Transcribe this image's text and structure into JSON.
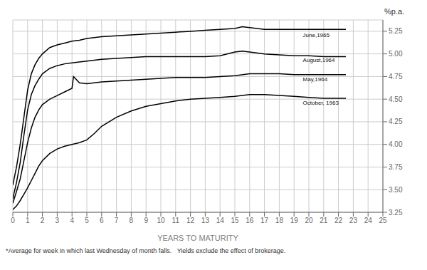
{
  "chart_data": {
    "type": "line",
    "xlabel": "YEARS TO MATURITY",
    "ylabel": "%p.a.",
    "footnote": "*Average for week in which last Wednesday of month falls.   Yields exclude the effect of brokerage.",
    "color": "#000000",
    "grid": true,
    "xlim": [
      0,
      25
    ],
    "ylim": [
      3.25,
      5.375
    ],
    "xticks": [
      0,
      1,
      2,
      3,
      4,
      5,
      6,
      7,
      8,
      9,
      10,
      11,
      12,
      13,
      14,
      15,
      16,
      17,
      18,
      19,
      20,
      21,
      22,
      23,
      24,
      25
    ],
    "yticks": [
      3.25,
      {
        "value": 3.5,
        "label": "3.50"
      },
      3.75,
      {
        "value": 4,
        "label": "4.00"
      },
      4.25,
      {
        "value": 4.5,
        "label": "4.50"
      },
      4.75,
      {
        "value": 5,
        "label": "5.00"
      },
      5.25
    ],
    "series": [
      {
        "name": "June,1965",
        "label_x": 19.5,
        "label_y": 5.21,
        "x": [
          0.0,
          0.25,
          0.5,
          0.75,
          1.0,
          1.25,
          1.5,
          1.75,
          2.0,
          2.5,
          3.0,
          3.5,
          4.0,
          4.5,
          5.0,
          5.5,
          6.0,
          7.0,
          8.0,
          9.0,
          10.0,
          11.0,
          12.0,
          13.0,
          14.0,
          15.0,
          15.5,
          16.0,
          17.0,
          18.0,
          19.0,
          20.0,
          21.0,
          22.0,
          22.5
        ],
        "values": [
          3.55,
          3.75,
          4.0,
          4.3,
          4.6,
          4.78,
          4.88,
          4.95,
          5.0,
          5.07,
          5.1,
          5.12,
          5.14,
          5.15,
          5.17,
          5.18,
          5.19,
          5.2,
          5.21,
          5.22,
          5.23,
          5.24,
          5.25,
          5.26,
          5.27,
          5.28,
          5.3,
          5.29,
          5.27,
          5.27,
          5.27,
          5.27,
          5.27,
          5.27,
          5.27
        ]
      },
      {
        "name": "August,1964",
        "label_x": 19.5,
        "label_y": 4.93,
        "x": [
          0.0,
          0.25,
          0.5,
          0.75,
          1.0,
          1.25,
          1.5,
          1.75,
          2.0,
          2.5,
          3.0,
          3.5,
          4.0,
          4.5,
          5.0,
          5.5,
          6.0,
          7.0,
          8.0,
          9.0,
          10.0,
          11.0,
          12.0,
          13.0,
          14.0,
          15.0,
          15.5,
          16.0,
          17.0,
          18.0,
          19.0,
          20.0,
          21.0,
          22.0,
          22.5
        ],
        "values": [
          3.4,
          3.58,
          3.8,
          4.1,
          4.38,
          4.55,
          4.65,
          4.72,
          4.78,
          4.84,
          4.87,
          4.89,
          4.9,
          4.91,
          4.92,
          4.93,
          4.94,
          4.95,
          4.96,
          4.97,
          4.97,
          4.97,
          4.97,
          4.97,
          4.98,
          5.02,
          5.03,
          5.02,
          5.0,
          4.99,
          4.98,
          4.98,
          4.97,
          4.97,
          4.97
        ]
      },
      {
        "name": "May,1964",
        "label_x": 19.5,
        "label_y": 4.72,
        "x": [
          0.0,
          0.25,
          0.5,
          0.75,
          1.0,
          1.25,
          1.5,
          1.75,
          2.0,
          2.5,
          3.0,
          3.5,
          4.0,
          4.1,
          4.5,
          5.0,
          5.5,
          6.0,
          7.0,
          8.0,
          9.0,
          10.0,
          11.0,
          12.0,
          13.0,
          14.0,
          15.0,
          16.0,
          17.0,
          18.0,
          19.0,
          20.0,
          21.0,
          22.0,
          22.5
        ],
        "values": [
          3.35,
          3.48,
          3.62,
          3.82,
          4.02,
          4.18,
          4.3,
          4.38,
          4.44,
          4.5,
          4.54,
          4.58,
          4.62,
          4.75,
          4.68,
          4.67,
          4.68,
          4.69,
          4.7,
          4.71,
          4.72,
          4.73,
          4.74,
          4.74,
          4.74,
          4.75,
          4.76,
          4.78,
          4.78,
          4.78,
          4.77,
          4.77,
          4.77,
          4.77,
          4.77
        ]
      },
      {
        "name": "October, 1963",
        "label_x": 19.5,
        "label_y": 4.46,
        "x": [
          0.0,
          0.25,
          0.5,
          0.75,
          1.0,
          1.25,
          1.5,
          1.75,
          2.0,
          2.5,
          3.0,
          3.5,
          4.0,
          4.5,
          5.0,
          5.5,
          6.0,
          7.0,
          8.0,
          9.0,
          10.0,
          11.0,
          12.0,
          13.0,
          14.0,
          15.0,
          16.0,
          17.0,
          18.0,
          19.0,
          20.0,
          21.0,
          22.0,
          22.5
        ],
        "values": [
          3.28,
          3.32,
          3.38,
          3.45,
          3.52,
          3.6,
          3.68,
          3.76,
          3.82,
          3.9,
          3.95,
          3.98,
          4.0,
          4.02,
          4.05,
          4.12,
          4.2,
          4.3,
          4.37,
          4.42,
          4.45,
          4.48,
          4.5,
          4.51,
          4.52,
          4.53,
          4.55,
          4.55,
          4.54,
          4.53,
          4.52,
          4.51,
          4.51,
          4.51
        ]
      }
    ]
  }
}
